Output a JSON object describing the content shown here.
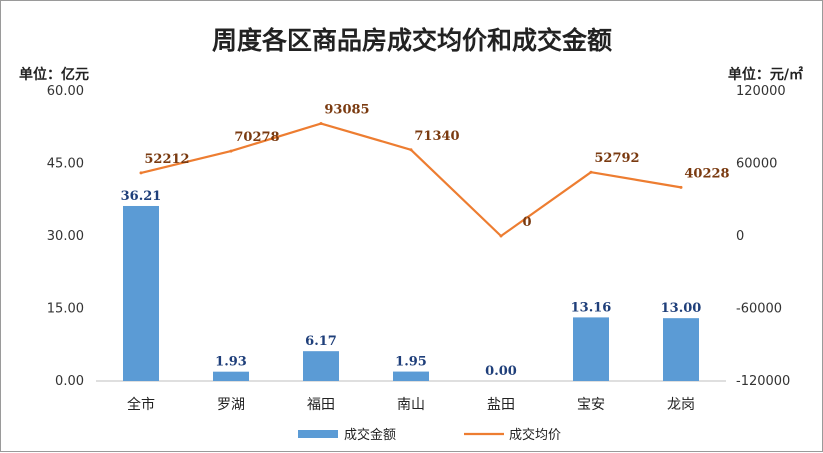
{
  "chart_data": {
    "type": "bar",
    "title": "周度各区商品房成交均价和成交金额",
    "ylabel_left": "单位：亿元",
    "ylabel_right": "单位：元/㎡",
    "categories": [
      "全市",
      "罗湖",
      "福田",
      "南山",
      "盐田",
      "宝安",
      "龙岗"
    ],
    "series": [
      {
        "name": "成交金额",
        "type": "bar",
        "axis": "left",
        "values": [
          36.21,
          1.93,
          6.17,
          1.95,
          0.0,
          13.16,
          13.0
        ],
        "labels": [
          "36.21",
          "1.93",
          "6.17",
          "1.95",
          "0.00",
          "13.16",
          "13.00"
        ],
        "color": "#5b9bd5"
      },
      {
        "name": "成交均价",
        "type": "line",
        "axis": "right",
        "values": [
          52212,
          70278,
          93085,
          71340,
          0,
          52792,
          40228
        ],
        "labels": [
          "52212",
          "70278",
          "93085",
          "71340",
          "0",
          "52792",
          "40228"
        ],
        "color": "#ed7d31"
      }
    ],
    "ylim_left": [
      0,
      60
    ],
    "yticks_left": [
      "60.00",
      "45.00",
      "30.00",
      "15.00",
      "0.00"
    ],
    "ylim_right": [
      -120000,
      120000
    ],
    "yticks_right": [
      "120000",
      "60000",
      "0",
      "-60000",
      "-120000"
    ],
    "grid": false,
    "legend": "bottom"
  }
}
